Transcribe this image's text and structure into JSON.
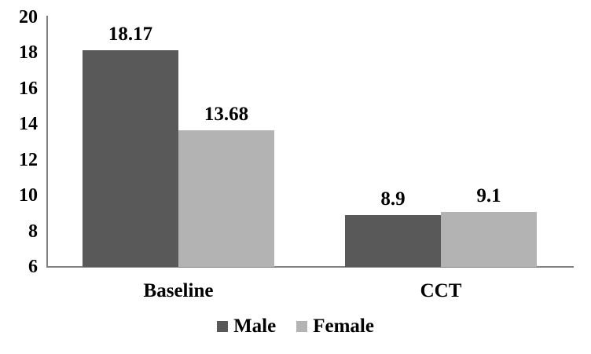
{
  "chart_data": {
    "type": "bar",
    "title": "",
    "xlabel": "",
    "ylabel": "",
    "categories": [
      "Baseline",
      "CCT"
    ],
    "series": [
      {
        "name": "Male",
        "values": [
          18.17,
          8.9
        ],
        "value_labels": [
          "18.17",
          "8.9"
        ],
        "color": "#595959"
      },
      {
        "name": "Female",
        "values": [
          13.68,
          9.1
        ],
        "value_labels": [
          "13.68",
          "9.1"
        ],
        "color": "#b3b3b3"
      }
    ],
    "ylim": [
      6,
      20
    ],
    "yticks": [
      20,
      18,
      16,
      14,
      12,
      10,
      8,
      6
    ],
    "grid": false,
    "legend_position": "bottom",
    "axis_color": "#808080",
    "text_color": "#000000",
    "background_color": "#ffffff"
  }
}
